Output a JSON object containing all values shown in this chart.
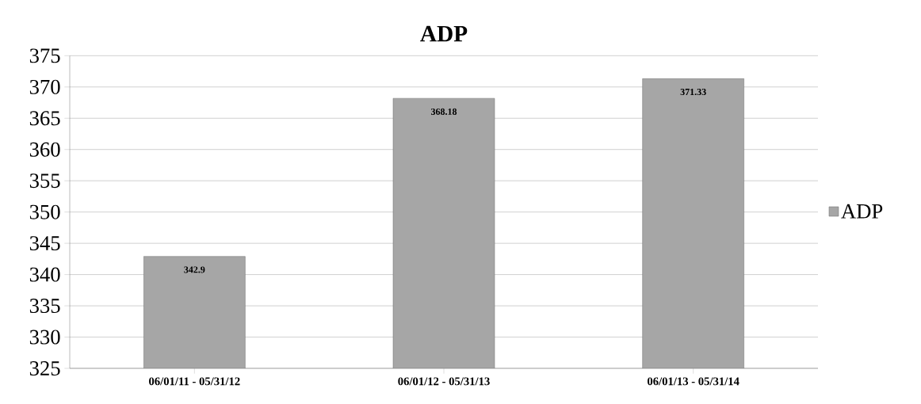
{
  "chart_data": {
    "type": "bar",
    "title": "ADP",
    "categories": [
      "06/01/11 - 05/31/12",
      "06/01/12 - 05/31/13",
      "06/01/13 - 05/31/14"
    ],
    "series": [
      {
        "name": "ADP",
        "color": "#a6a6a6",
        "values": [
          342.9,
          368.18,
          371.33
        ]
      }
    ],
    "ylim": [
      325,
      375
    ],
    "yticks": [
      325,
      330,
      335,
      340,
      345,
      350,
      355,
      360,
      365,
      370,
      375
    ],
    "grid": "y",
    "legend": "right",
    "data_labels": true
  }
}
